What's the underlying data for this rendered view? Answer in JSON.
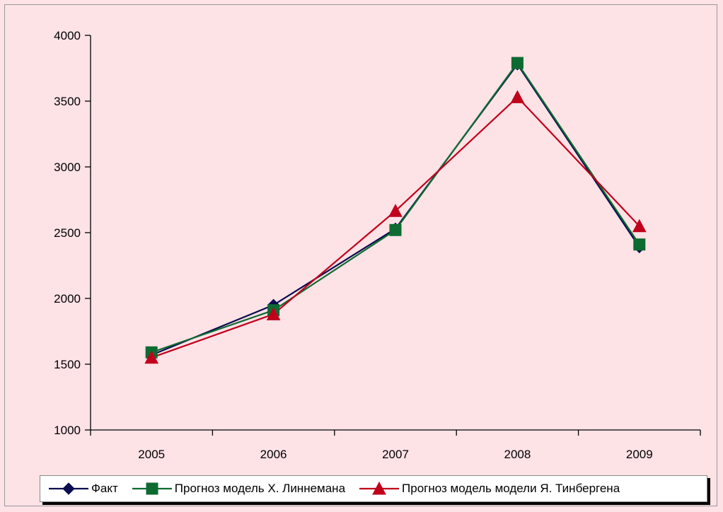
{
  "chart_data": {
    "type": "line",
    "title": "",
    "xlabel": "",
    "ylabel": "",
    "categories": [
      "2005",
      "2006",
      "2007",
      "2008",
      "2009"
    ],
    "ylim": [
      1000,
      4000
    ],
    "yticks": [
      1000,
      1500,
      2000,
      2500,
      3000,
      3500,
      4000
    ],
    "grid": false,
    "legend_position": "bottom",
    "series": [
      {
        "name": "Факт",
        "values": [
          1570,
          1950,
          2530,
          3780,
          2390
        ],
        "color": "#0b0b4f",
        "marker": "diamond"
      },
      {
        "name": "Прогноз модель Х. Линнемана",
        "values": [
          1590,
          1910,
          2520,
          3790,
          2410
        ],
        "color": "#0d6b31",
        "marker": "square"
      },
      {
        "name": "Прогноз модель модели Я. Тинбергена",
        "values": [
          1550,
          1880,
          2665,
          3530,
          2550
        ],
        "color": "#c0001a",
        "marker": "triangle"
      }
    ]
  },
  "colors": {
    "background": "#fde2e6",
    "axis": "#000000"
  }
}
